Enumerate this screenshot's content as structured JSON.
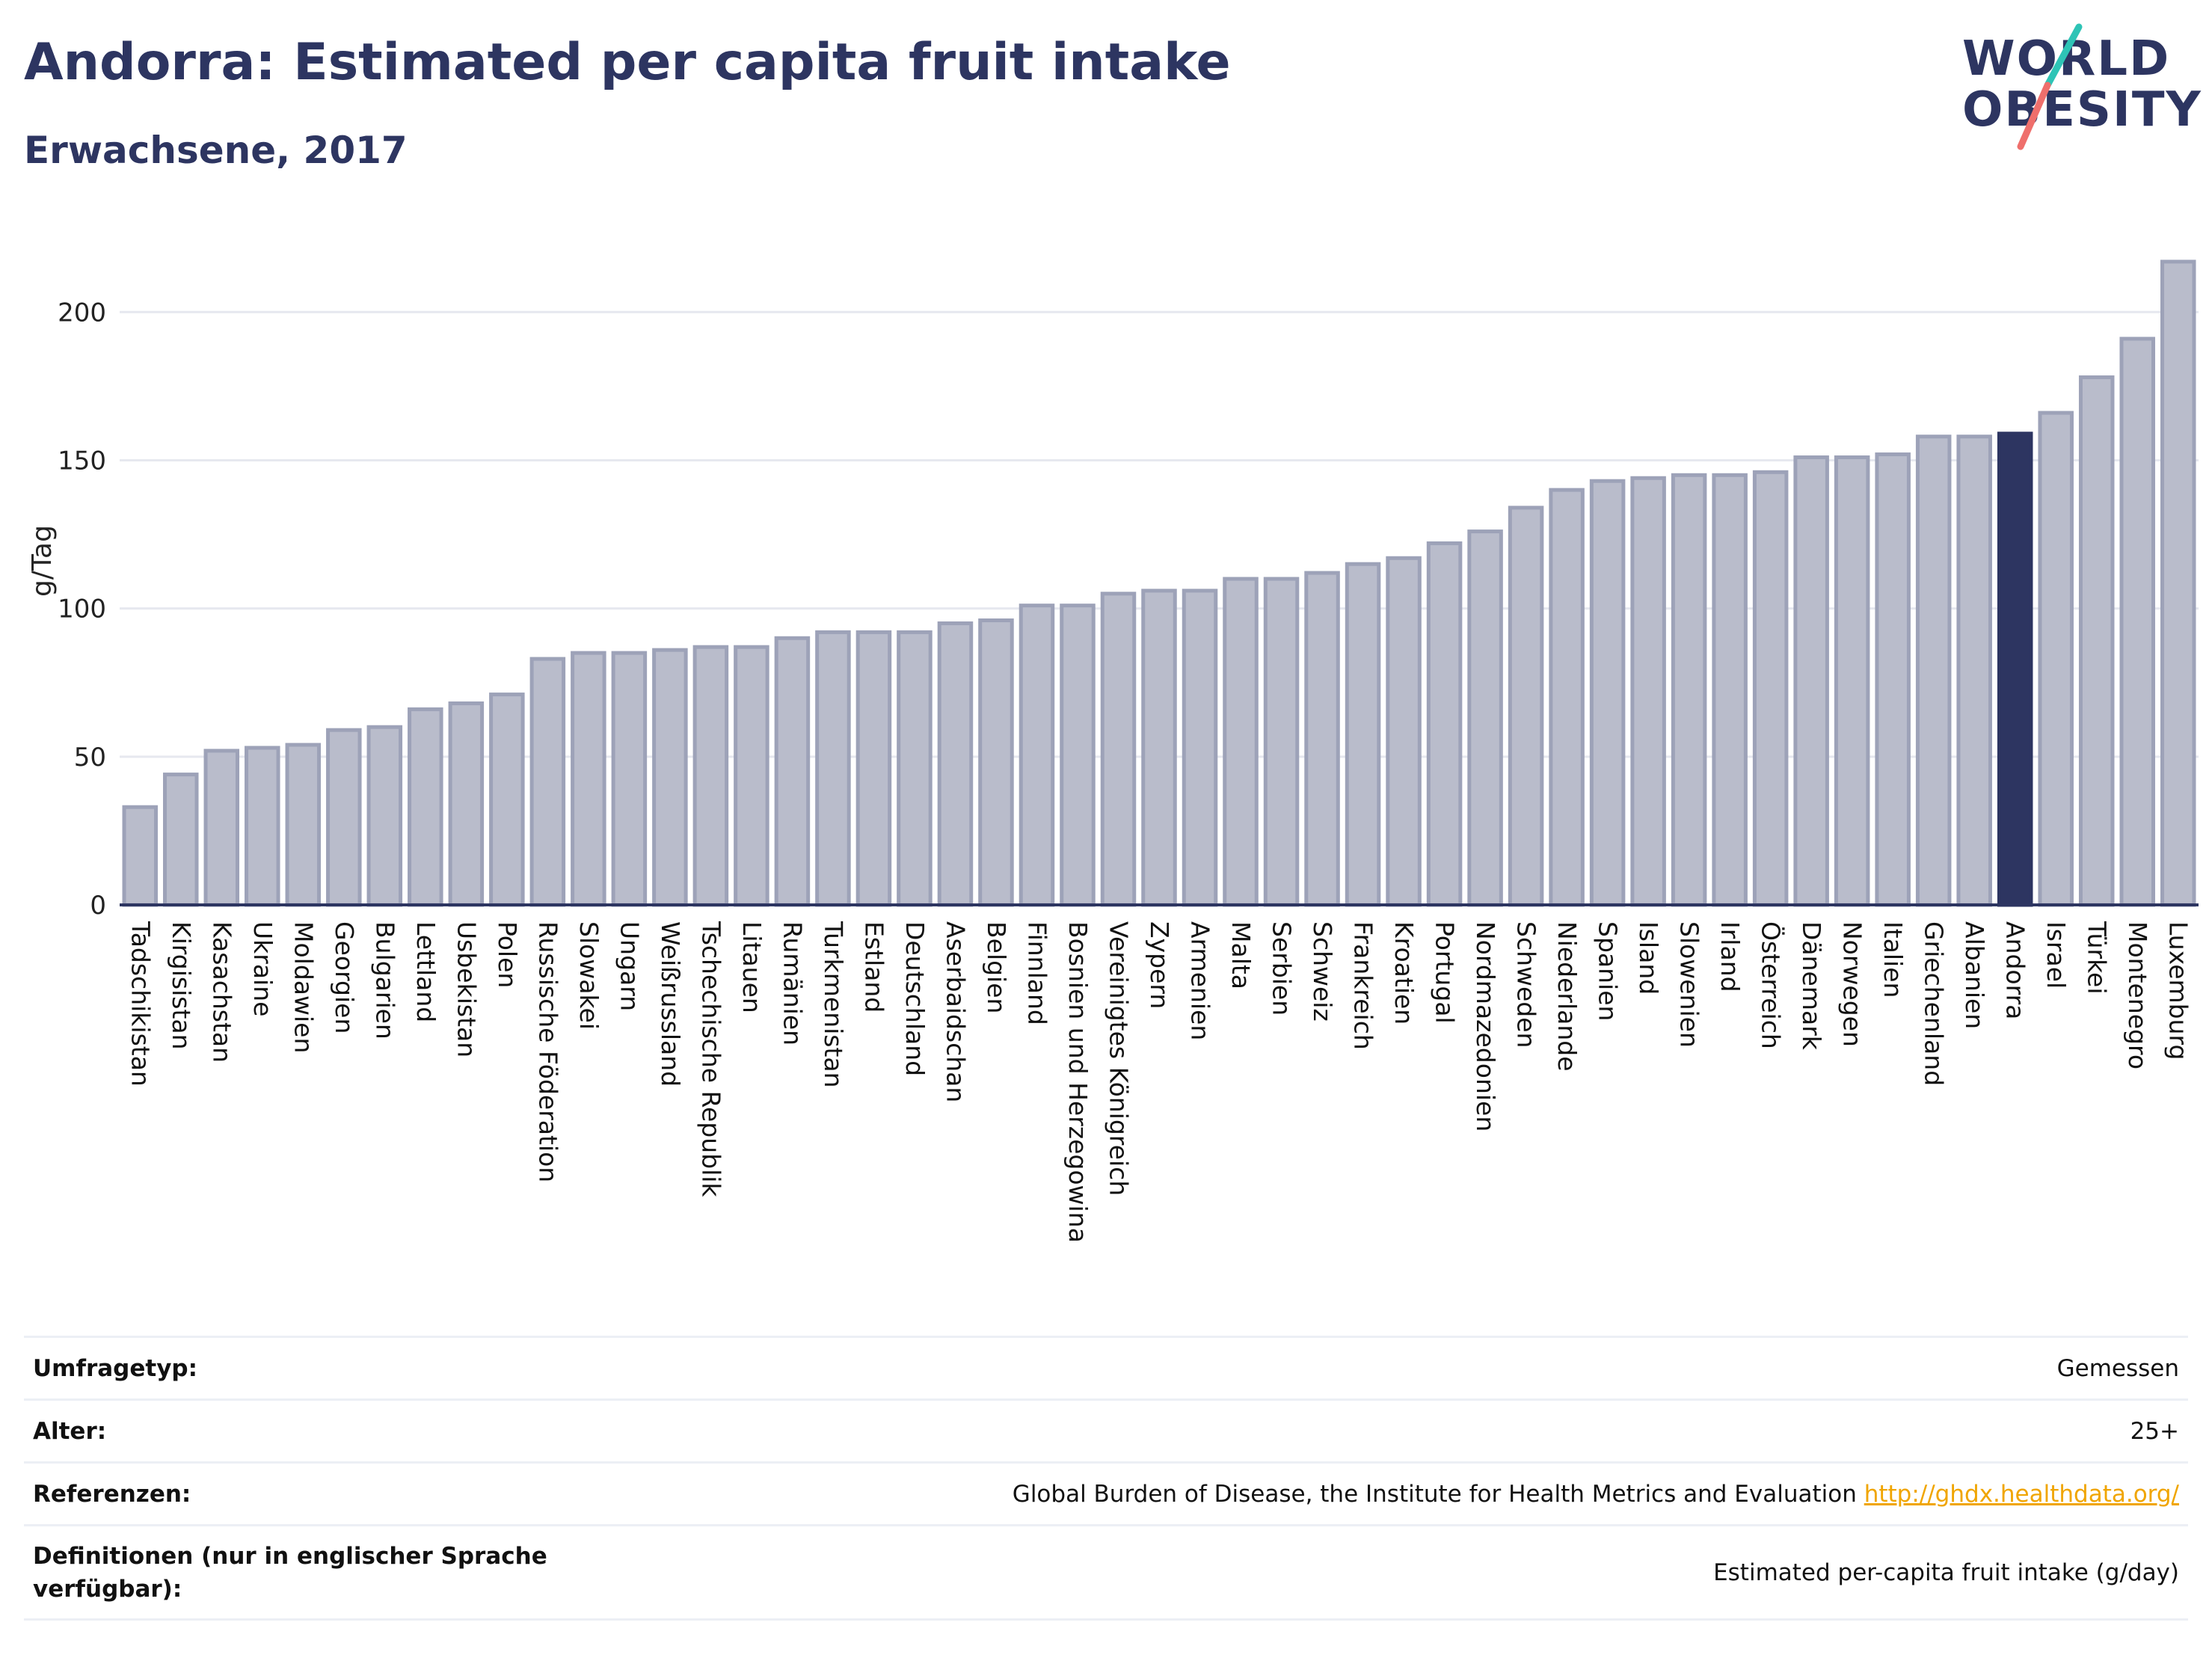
{
  "header": {
    "title": "Andorra: Estimated per capita fruit intake",
    "subtitle": "Erwachsene, 2017"
  },
  "logo": {
    "line1": "WORLD",
    "line2": "OBESITY"
  },
  "colors": {
    "highlight": "#2d3561",
    "bar_fill": "#b9bccb",
    "bar_stroke": "#9da2b8",
    "grid": "#e6e8ef",
    "logo_slash_teal": "#2ec4b6",
    "logo_slash_coral": "#ef6f6c"
  },
  "chart_data": {
    "type": "bar",
    "ylabel": "g/Tag",
    "ylim": [
      0,
      220
    ],
    "yticks": [
      0,
      50,
      100,
      150,
      200
    ],
    "grid": true,
    "highlight": "Andorra",
    "categories": [
      "Tadschikistan",
      "Kirgisistan",
      "Kasachstan",
      "Ukraine",
      "Moldawien",
      "Georgien",
      "Bulgarien",
      "Lettland",
      "Usbekistan",
      "Polen",
      "Russische Föderation",
      "Slowakei",
      "Ungarn",
      "Weißrussland",
      "Tschechische Republik",
      "Litauen",
      "Rumänien",
      "Turkmenistan",
      "Estland",
      "Deutschland",
      "Aserbaidschan",
      "Belgien",
      "Finnland",
      "Bosnien und Herzegowina",
      "Vereinigtes Königreich",
      "Zypern",
      "Armenien",
      "Malta",
      "Serbien",
      "Schweiz",
      "Frankreich",
      "Kroatien",
      "Portugal",
      "Nordmazedonien",
      "Schweden",
      "Niederlande",
      "Spanien",
      "Island",
      "Slowenien",
      "Irland",
      "Österreich",
      "Dänemark",
      "Norwegen",
      "Italien",
      "Griechenland",
      "Albanien",
      "Andorra",
      "Israel",
      "Türkei",
      "Montenegro",
      "Luxemburg"
    ],
    "values": [
      33,
      44,
      52,
      53,
      54,
      59,
      60,
      66,
      68,
      71,
      83,
      85,
      85,
      86,
      87,
      87,
      90,
      92,
      92,
      92,
      95,
      96,
      101,
      101,
      105,
      106,
      106,
      110,
      110,
      112,
      115,
      117,
      122,
      126,
      134,
      140,
      143,
      144,
      145,
      145,
      146,
      151,
      151,
      152,
      158,
      158,
      159,
      166,
      178,
      191,
      217
    ]
  },
  "info": [
    {
      "key": "Umfragetyp:",
      "value": "Gemessen"
    },
    {
      "key": "Alter:",
      "value": "25+"
    },
    {
      "key": "Referenzen:",
      "value": "Global Burden of Disease, the Institute for Health Metrics and Evaluation",
      "link": "http://ghdx.healthdata.org/"
    },
    {
      "key": "Definitionen (nur in englischer Sprache verfügbar):",
      "value": "Estimated per-capita fruit intake (g/day)"
    }
  ]
}
